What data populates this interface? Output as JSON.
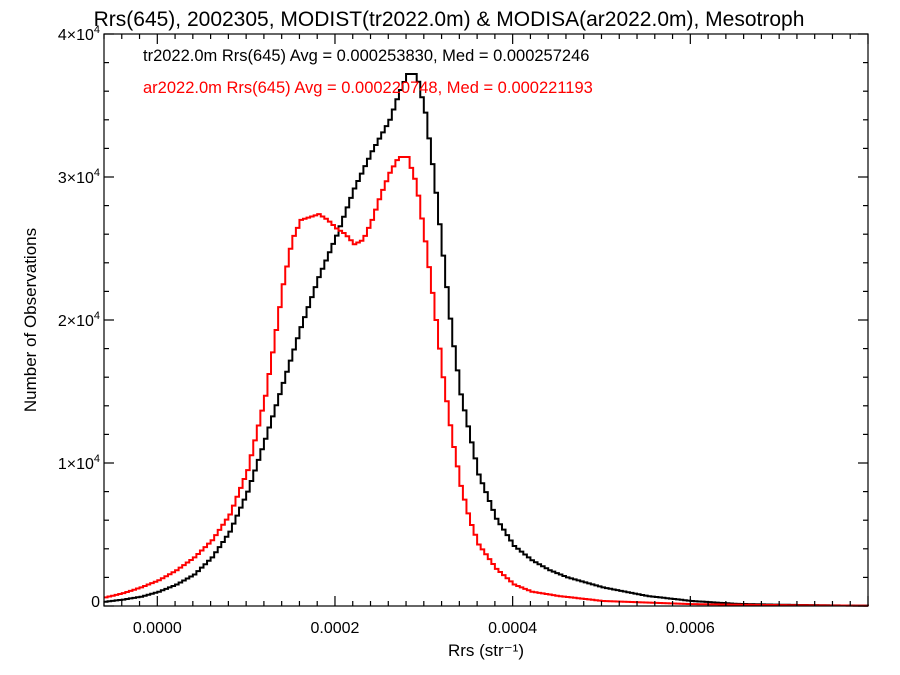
{
  "chart_data": {
    "type": "line",
    "title": "Rrs(645), 2002305, MODIST(tr2022.0m) & MODISA(ar2022.0m), Mesotroph",
    "xlabel": "Rrs (str⁻¹)",
    "ylabel": "Number of Observations",
    "xlim": [
      -6e-05,
      0.0008
    ],
    "ylim": [
      0,
      40000
    ],
    "x_ticks": [
      0.0,
      0.0002,
      0.0004,
      0.0006
    ],
    "x_tick_labels": [
      "0.0000",
      "0.0002",
      "0.0004",
      "0.0006"
    ],
    "y_ticks": [
      0,
      10000,
      20000,
      30000,
      40000
    ],
    "y_tick_labels": [
      {
        "base": "0",
        "exp": ""
      },
      {
        "base": "1×10",
        "exp": "4"
      },
      {
        "base": "2×10",
        "exp": "4"
      },
      {
        "base": "3×10",
        "exp": "4"
      },
      {
        "base": "4×10",
        "exp": "4"
      }
    ],
    "grid": false,
    "step": true,
    "series": [
      {
        "name": "tr2022.0m",
        "color": "#000000",
        "annotation": "tr2022.0m Rrs(645) Avg = 0.000253830, Med = 0.000257246",
        "x": [
          -6e-05,
          -4e-05,
          -2e-05,
          0.0,
          2e-05,
          4e-05,
          6e-05,
          8e-05,
          0.0001,
          0.00012,
          0.00014,
          0.00016,
          0.00018,
          0.0002,
          0.00022,
          0.00024,
          0.00026,
          0.00027,
          0.00028,
          0.00029,
          0.0003,
          0.00031,
          0.00032,
          0.00033,
          0.00034,
          0.00036,
          0.00038,
          0.0004,
          0.00042,
          0.00044,
          0.00046,
          0.0005,
          0.00055,
          0.0006,
          0.00065,
          0.0007,
          0.00075,
          0.0008
        ],
        "y": [
          300,
          450,
          650,
          1000,
          1500,
          2200,
          3400,
          5200,
          8000,
          11700,
          15600,
          19500,
          23000,
          25900,
          29200,
          31800,
          34000,
          35800,
          37200,
          37200,
          34500,
          30000,
          24500,
          19000,
          14800,
          9200,
          6100,
          4200,
          3200,
          2500,
          2000,
          1300,
          700,
          350,
          150,
          90,
          50,
          20
        ]
      },
      {
        "name": "ar2022.0m",
        "color": "#ff0000",
        "annotation": "ar2022.0m Rrs(645) Avg = 0.000220748, Med = 0.000221193",
        "x": [
          -6e-05,
          -4e-05,
          -2e-05,
          0.0,
          2e-05,
          4e-05,
          6e-05,
          8e-05,
          0.0001,
          0.00012,
          0.00013,
          0.00014,
          0.00015,
          0.00016,
          0.00017,
          0.00018,
          0.00019,
          0.0002,
          0.00021,
          0.00022,
          0.00023,
          0.00024,
          0.00025,
          0.00026,
          0.00027,
          0.00028,
          0.00029,
          0.0003,
          0.00031,
          0.00032,
          0.00033,
          0.00034,
          0.00035,
          0.00036,
          0.00038,
          0.0004,
          0.00042,
          0.00045,
          0.0005,
          0.0006,
          0.0007,
          0.0008
        ],
        "y": [
          600,
          900,
          1300,
          1800,
          2500,
          3400,
          4600,
          6400,
          9500,
          14700,
          18500,
          22500,
          25600,
          27000,
          27200,
          27400,
          27000,
          26400,
          26000,
          25300,
          25600,
          27000,
          28800,
          30300,
          31400,
          31400,
          29500,
          25500,
          21000,
          16000,
          11800,
          8400,
          6000,
          4300,
          2600,
          1500,
          1000,
          700,
          350,
          130,
          60,
          20
        ]
      }
    ]
  }
}
